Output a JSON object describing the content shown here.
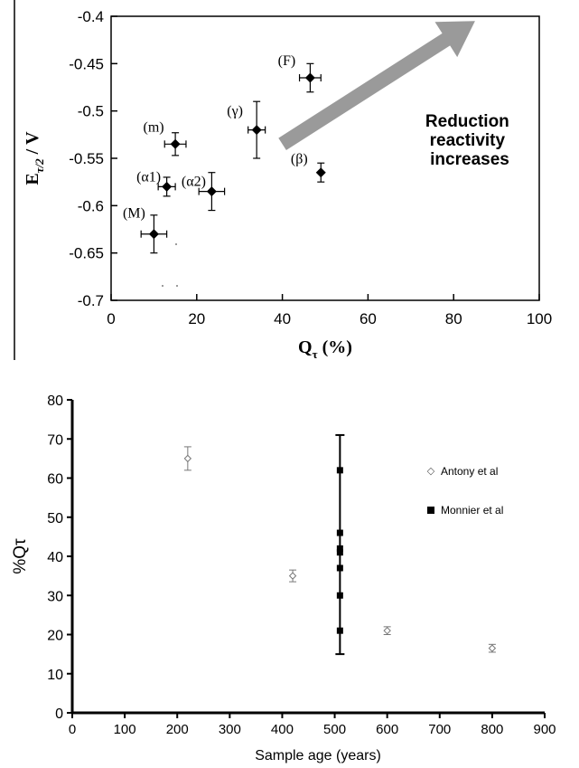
{
  "chart_data": [
    {
      "type": "scatter",
      "xlabel_main": "Q",
      "xlabel_sub": "τ",
      "xlabel_unit": " (%)",
      "ylabel_main": "E",
      "ylabel_sub": "τ/2",
      "ylabel_unit": " / V",
      "xlim": [
        0,
        100
      ],
      "ylim": [
        -0.7,
        -0.4
      ],
      "xticks": [
        0,
        20,
        40,
        60,
        80,
        100
      ],
      "yticks": [
        -0.4,
        -0.45,
        -0.5,
        -0.55,
        -0.6,
        -0.65,
        -0.7
      ],
      "xtick_labels": [
        "0",
        "20",
        "40",
        "60",
        "80",
        "100"
      ],
      "ytick_labels": [
        "-0.4",
        "-0.45",
        "-0.5",
        "-0.55",
        "-0.6",
        "-0.65",
        "-0.7"
      ],
      "points": [
        {
          "label": "(M)",
          "x": 10,
          "y": -0.63,
          "xerr": 3,
          "yerr": 0.02
        },
        {
          "label": "(α1)",
          "x": 13,
          "y": -0.58,
          "xerr": 2,
          "yerr": 0.01
        },
        {
          "label": "(m)",
          "x": 15,
          "y": -0.535,
          "xerr": 2.5,
          "yerr": 0.012
        },
        {
          "label": "(α2)",
          "x": 23.5,
          "y": -0.585,
          "xerr": 3,
          "yerr": 0.02
        },
        {
          "label": "(γ)",
          "x": 34,
          "y": -0.52,
          "xerr": 2,
          "yerr": 0.03
        },
        {
          "label": "(F)",
          "x": 46.5,
          "y": -0.465,
          "xerr": 2.5,
          "yerr": 0.015
        },
        {
          "label": "(β)",
          "x": 49,
          "y": -0.565,
          "xerr": 0,
          "yerr": 0.01
        }
      ],
      "annotation": {
        "lines": [
          "Reduction",
          "reactivity",
          "increases"
        ]
      },
      "arrow": {
        "from": [
          40,
          -0.535
        ],
        "to": [
          85,
          -0.405
        ]
      }
    },
    {
      "type": "scatter",
      "xlabel": "Sample age (years)",
      "ylabel": "%Qτ",
      "xlim": [
        0,
        900
      ],
      "ylim": [
        0,
        80
      ],
      "xticks": [
        0,
        100,
        200,
        300,
        400,
        500,
        600,
        700,
        800,
        900
      ],
      "yticks": [
        0,
        10,
        20,
        30,
        40,
        50,
        60,
        70,
        80
      ],
      "xtick_labels": [
        "0",
        "100",
        "200",
        "300",
        "400",
        "500",
        "600",
        "700",
        "800",
        "900"
      ],
      "ytick_labels": [
        "0",
        "10",
        "20",
        "30",
        "40",
        "50",
        "60",
        "70",
        "80"
      ],
      "series": [
        {
          "name": "Antony et al",
          "marker": "open-diamond",
          "points": [
            {
              "x": 220,
              "y": 65,
              "err": 3
            },
            {
              "x": 420,
              "y": 35,
              "err": 1.5
            },
            {
              "x": 600,
              "y": 21,
              "err": 1
            },
            {
              "x": 800,
              "y": 16.5,
              "err": 1
            }
          ]
        },
        {
          "name": "Monnier et al",
          "marker": "filled-square",
          "points": [
            {
              "x": 510,
              "y": 62
            },
            {
              "x": 510,
              "y": 46
            },
            {
              "x": 510,
              "y": 42
            },
            {
              "x": 510,
              "y": 41
            },
            {
              "x": 510,
              "y": 37
            },
            {
              "x": 510,
              "y": 30
            },
            {
              "x": 510,
              "y": 21
            }
          ],
          "range": {
            "x": 510,
            "low": 15,
            "high": 71
          }
        }
      ]
    }
  ]
}
